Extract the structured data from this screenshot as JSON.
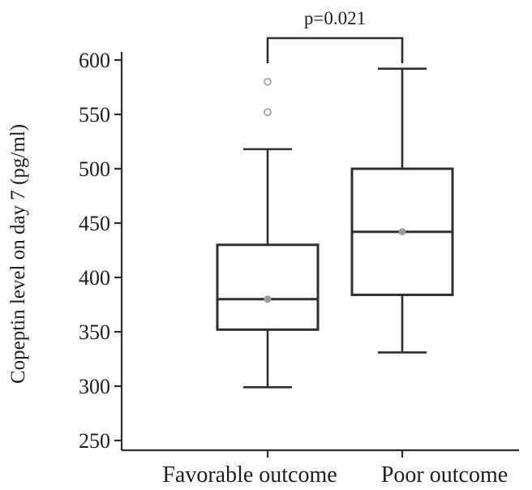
{
  "chart_data": {
    "type": "boxplot",
    "ylabel": "Copeptin level on day 7 (pg/ml)",
    "ylim": [
      245,
      608
    ],
    "yticks": [
      250,
      300,
      350,
      400,
      450,
      500,
      550,
      600
    ],
    "ytick_labels": [
      "250",
      "300",
      "350",
      "400",
      "450",
      "500",
      "550",
      "600"
    ],
    "categories": [
      "Favorable outcome",
      "Poor outcome"
    ],
    "groups": [
      {
        "name": "Favorable outcome",
        "whisker_low": 299,
        "q1": 352,
        "median": 380,
        "q3": 430,
        "whisker_high": 518,
        "mean": 380,
        "outliers": [
          552,
          580
        ]
      },
      {
        "name": "Poor outcome",
        "whisker_low": 331,
        "q1": 384,
        "median": 442,
        "q3": 500,
        "whisker_high": 592,
        "mean": 442,
        "outliers": []
      }
    ],
    "significance": {
      "label": "p=0.021",
      "between": [
        0,
        1
      ]
    },
    "colors": {
      "line": "#2f2f2f",
      "mean_marker": "#9c9c9c",
      "outlier_marker": "#9c9c9c"
    }
  }
}
